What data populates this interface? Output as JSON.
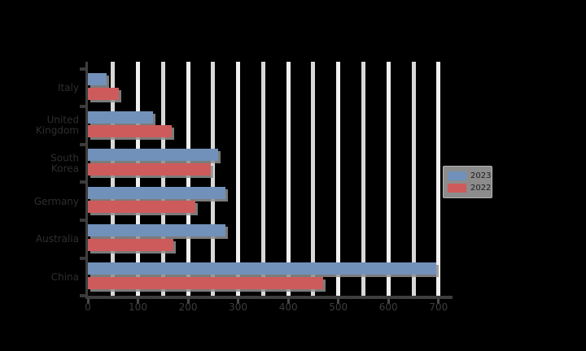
{
  "chart_data": {
    "type": "bar",
    "orientation": "horizontal",
    "title": "",
    "xlabel": "",
    "ylabel": "",
    "categories": [
      "Italy",
      "United\nKingdom",
      "South\nKorea",
      "Germany",
      "Australia",
      "China"
    ],
    "series": [
      {
        "name": "2023",
        "color": "#7191BA",
        "values": [
          37,
          130,
          260,
          275,
          275,
          695
        ]
      },
      {
        "name": "2022",
        "color": "#CE5B5B",
        "values": [
          62,
          168,
          246,
          214,
          170,
          470
        ]
      }
    ],
    "x_ticks": [
      0,
      100,
      200,
      300,
      400,
      500,
      600,
      700
    ],
    "xlim": [
      0,
      728
    ],
    "grid": "vertical white gridlines, minor + major",
    "legend_position": "right of plot, vertically centered",
    "background": "transparent (rendered black)"
  },
  "legend": {
    "items": [
      {
        "label": "2023",
        "color": "#7191BA"
      },
      {
        "label": "2022",
        "color": "#CE5B5B"
      }
    ]
  },
  "colors": {
    "background": "#000000",
    "bar_blue": "#7191BA",
    "bar_red": "#CE5B5B",
    "grid_major": "#F0F0F0",
    "grid_minor": "#D8D8D8",
    "spine": "#3E3E3E",
    "bar_shadow": "#919191",
    "axis_text": "#2E2E2E",
    "legend_bg": "rgba(255,255,255,0.55)"
  }
}
